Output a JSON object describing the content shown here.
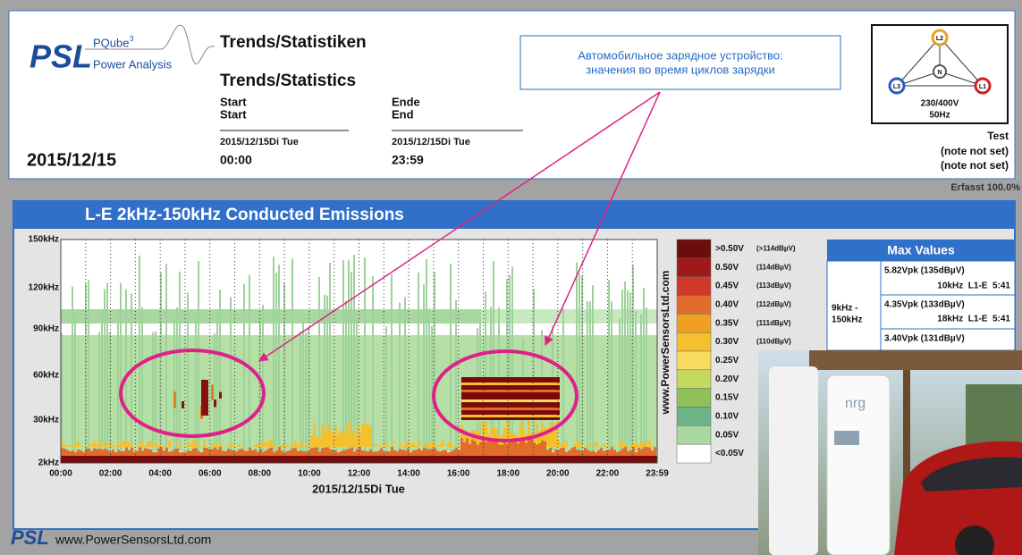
{
  "header": {
    "logo": "PSL",
    "product": "PQube",
    "product_sup": "3",
    "subtitle": "Power Analysis",
    "title_de": "Trends/Statistiken",
    "title_en": "Trends/Statistics",
    "start_de": "Start",
    "start_en": "Start",
    "end_de": "Ende",
    "end_en": "End",
    "start_date": "2015/12/15Di Tue",
    "start_time": "00:00",
    "end_date": "2015/12/15Di Tue",
    "end_time": "23:59",
    "report_date": "2015/12/15"
  },
  "annotation": {
    "lines": [
      "Автомобильное зарядное устройство:",
      "значения во время циклов зарядки"
    ]
  },
  "wiring": {
    "nodes": [
      "L2",
      "N",
      "L3",
      "L1"
    ],
    "voltage": "230/400V",
    "frequency": "50Hz"
  },
  "notes": {
    "lines": [
      "Test",
      "(note not set)",
      "(note not set)"
    ]
  },
  "status": "Erfasst 100.0%",
  "chart": {
    "title": "L-E 2kHz-150kHz Conducted Emissions",
    "y_labels": [
      "150kHz",
      "120kHz",
      "90kHz",
      "60kHz",
      "30kHz",
      "2kHz"
    ],
    "x_labels": [
      "00:00",
      "02:00",
      "04:00",
      "06:00",
      "08:00",
      "10:00",
      "12:00",
      "14:00",
      "16:00",
      "18:00",
      "20:00",
      "22:00",
      "23:59"
    ],
    "x_title": "2015/12/15Di Tue",
    "watermark": "www.PowerSensorsLtd.com",
    "legend": [
      {
        "color": "#6b0d0d",
        "label": ">0.50V",
        "detail": "(>114dBµV)"
      },
      {
        "color": "#a01818",
        "label": "0.50V",
        "detail": "(114dBµV)"
      },
      {
        "color": "#d0382a",
        "label": "0.45V",
        "detail": "(113dBµV)"
      },
      {
        "color": "#e06e2a",
        "label": "0.40V",
        "detail": "(112dBµV)"
      },
      {
        "color": "#f0a020",
        "label": "0.35V",
        "detail": "(111dBµV)"
      },
      {
        "color": "#f5c030",
        "label": "0.30V",
        "detail": "(110dBµV)"
      },
      {
        "color": "#f8dc60",
        "label": "0.25V"
      },
      {
        "color": "#c5d860",
        "label": "0.20V"
      },
      {
        "color": "#8fc05a",
        "label": "0.15V"
      },
      {
        "color": "#6db488",
        "label": "0.10V"
      },
      {
        "color": "#a8d8a0",
        "label": "0.05V"
      },
      {
        "color": "#ffffff",
        "label": "<0.05V"
      }
    ]
  },
  "max_values": {
    "title": "Max Values",
    "range": [
      "9kHz -",
      "150kHz"
    ],
    "rows": [
      [
        "5.82Vpk (135dBµV)",
        "10kHz  L1-E  5:41"
      ],
      [
        "4.35Vpk (133dBµV)",
        "18kHz  L1-E  5:41"
      ],
      [
        "3.40Vpk (131dBµV)"
      ]
    ]
  },
  "photo": {
    "brand": "nrg"
  },
  "footer": {
    "logo": "PSL",
    "url": "www.PowerSensorsLtd.com"
  }
}
